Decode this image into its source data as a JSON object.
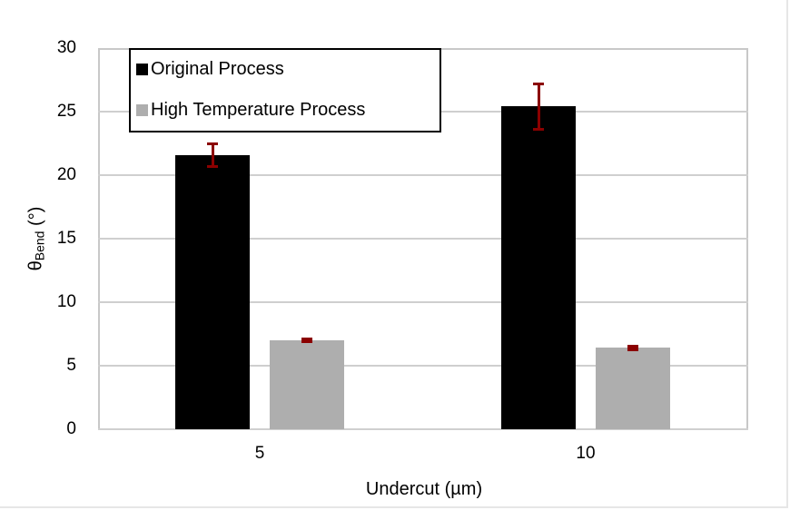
{
  "chart_data": {
    "type": "bar",
    "title": "",
    "xlabel": "Undercut (µm)",
    "ylabel_main": "θ",
    "ylabel_sub": "Bend",
    "ylabel_unit": "(°)",
    "categories": [
      "5",
      "10"
    ],
    "ylim": [
      0,
      30
    ],
    "yticks": [
      "0",
      "5",
      "10",
      "15",
      "20",
      "25",
      "30"
    ],
    "grid": true,
    "legend_position": "top-left inside",
    "series": [
      {
        "name": "Original Process",
        "color": "#000000",
        "values": [
          21.6,
          25.4
        ],
        "errors": [
          0.9,
          1.8
        ]
      },
      {
        "name": "High Temperature Process",
        "color": "#aeaeae",
        "values": [
          7.0,
          6.4
        ],
        "errors": [
          0.15,
          0.2
        ]
      }
    ],
    "error_bar_color": "#8b0000"
  }
}
